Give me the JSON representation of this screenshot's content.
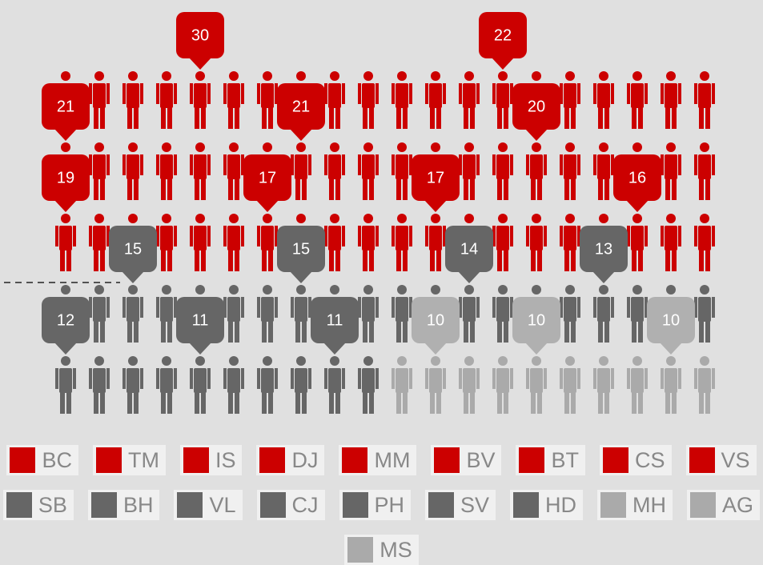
{
  "chart_data": {
    "type": "pictogram",
    "categories": [
      "BC",
      "TM",
      "IS",
      "DJ",
      "MM",
      "BV",
      "BT",
      "CS",
      "VS",
      "SB",
      "BH",
      "VL",
      "CJ",
      "PH",
      "SV",
      "HD",
      "MH",
      "AG",
      "MS"
    ],
    "values": [
      30,
      22,
      21,
      21,
      20,
      19,
      17,
      17,
      16,
      15,
      15,
      14,
      13,
      12,
      11,
      11,
      10,
      10,
      10
    ],
    "colors": [
      "#cc0000",
      "#cc0000",
      "#cc0000",
      "#cc0000",
      "#cc0000",
      "#cc0000",
      "#cc0000",
      "#cc0000",
      "#cc0000",
      "#666666",
      "#666666",
      "#666666",
      "#666666",
      "#666666",
      "#666666",
      "#666666",
      "#aaaaaa",
      "#aaaaaa",
      "#aaaaaa"
    ]
  }
}
